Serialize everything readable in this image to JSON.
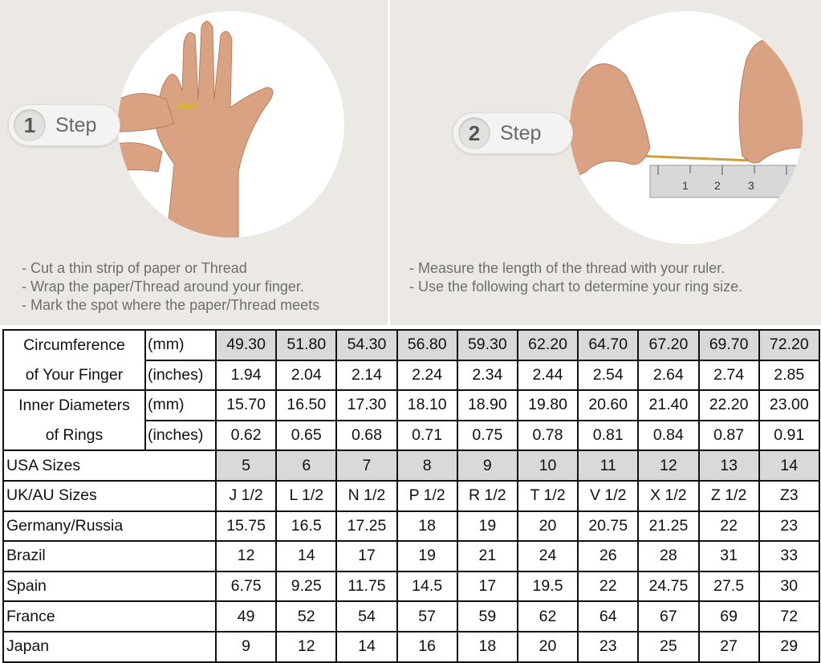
{
  "step1": {
    "number": "1",
    "label": "Step",
    "notes": [
      "- Cut a thin strip of paper or Thread",
      "- Wrap the paper/Thread around your finger.",
      "- Mark the spot where the paper/Thread meets"
    ]
  },
  "step2": {
    "number": "2",
    "label": "Step",
    "notes": [
      "- Measure the length of the thread with your ruler.",
      "- Use the following chart to determine your ring size."
    ],
    "ruler_marks": [
      "1",
      "2",
      "3"
    ]
  },
  "table": {
    "circumference": {
      "label_line1": "Circumference",
      "label_line2": "of Your Finger",
      "unit_mm": "(mm)",
      "unit_in": "(inches)",
      "mm": [
        "49.30",
        "51.80",
        "54.30",
        "56.80",
        "59.30",
        "62.20",
        "64.70",
        "67.20",
        "69.70",
        "72.20"
      ],
      "inches": [
        "1.94",
        "2.04",
        "2.14",
        "2.24",
        "2.34",
        "2.44",
        "2.54",
        "2.64",
        "2.74",
        "2.85"
      ]
    },
    "inner_diameter": {
      "label_line1": "Inner Diameters",
      "label_line2": "of Rings",
      "unit_mm": "(mm)",
      "unit_in": "(inches)",
      "mm": [
        "15.70",
        "16.50",
        "17.30",
        "18.10",
        "18.90",
        "19.80",
        "20.60",
        "21.40",
        "22.20",
        "23.00"
      ],
      "inches": [
        "0.62",
        "0.65",
        "0.68",
        "0.71",
        "0.75",
        "0.78",
        "0.81",
        "0.84",
        "0.87",
        "0.91"
      ]
    },
    "rows": [
      {
        "label": "USA Sizes",
        "values": [
          "5",
          "6",
          "7",
          "8",
          "9",
          "10",
          "11",
          "12",
          "13",
          "14"
        ]
      },
      {
        "label": "UK/AU Sizes",
        "values": [
          "J 1/2",
          "L 1/2",
          "N 1/2",
          "P 1/2",
          "R 1/2",
          "T 1/2",
          "V 1/2",
          "X 1/2",
          "Z 1/2",
          "Z3"
        ]
      },
      {
        "label": "Germany/Russia",
        "values": [
          "15.75",
          "16.5",
          "17.25",
          "18",
          "19",
          "20",
          "20.75",
          "21.25",
          "22",
          "23"
        ]
      },
      {
        "label": "Brazil",
        "values": [
          "12",
          "14",
          "17",
          "19",
          "21",
          "24",
          "26",
          "28",
          "31",
          "33"
        ]
      },
      {
        "label": "Spain",
        "values": [
          "6.75",
          "9.25",
          "11.75",
          "14.5",
          "17",
          "19.5",
          "22",
          "24.75",
          "27.5",
          "30"
        ]
      },
      {
        "label": "France",
        "values": [
          "49",
          "52",
          "54",
          "57",
          "59",
          "62",
          "64",
          "67",
          "69",
          "72"
        ]
      },
      {
        "label": "Japan",
        "values": [
          "9",
          "12",
          "14",
          "16",
          "18",
          "20",
          "23",
          "25",
          "27",
          "29"
        ]
      }
    ],
    "highlight_color": "#d9d9d9"
  }
}
